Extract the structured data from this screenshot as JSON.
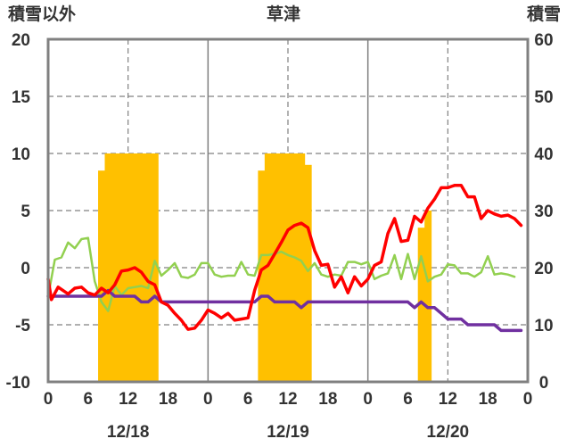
{
  "chart_data": {
    "type": "line",
    "title": "草津",
    "left_axis_label": "積雪以外",
    "right_axis_label": "積雪",
    "left_ylim": [
      -10,
      20
    ],
    "left_ticks": [
      "-10",
      "-5",
      "0",
      "5",
      "10",
      "15",
      "20"
    ],
    "right_ylim": [
      0,
      60
    ],
    "right_ticks": [
      "0",
      "10",
      "20",
      "30",
      "40",
      "50",
      "60"
    ],
    "x_range_hours": [
      0,
      72
    ],
    "x_tick_labels": [
      "0",
      "6",
      "12",
      "18",
      "0",
      "6",
      "12",
      "18",
      "0",
      "6",
      "12",
      "18",
      "0"
    ],
    "date_labels": [
      "12/18",
      "12/19",
      "12/20"
    ],
    "grid": "dashed vertical at 12h, solid at day boundaries, dashed horizontal",
    "colors": {
      "red": "#ff0000",
      "green": "#92d050",
      "purple": "#7030a0",
      "snow": "#ffc000",
      "frame": "#808080",
      "grid": "#808080"
    },
    "snow_depth_bars": [
      {
        "x0": 7.5,
        "x1": 8.5,
        "h": 37
      },
      {
        "x0": 8.5,
        "x1": 16.5,
        "h": 40
      },
      {
        "x0": 31.5,
        "x1": 32.5,
        "h": 37
      },
      {
        "x0": 32.5,
        "x1": 38.5,
        "h": 40
      },
      {
        "x0": 38.5,
        "x1": 39.5,
        "h": 38
      },
      {
        "x0": 55.5,
        "x1": 56.5,
        "h": 27
      },
      {
        "x0": 56.5,
        "x1": 57.5,
        "h": 30
      }
    ],
    "series": [
      {
        "color": "red",
        "points": [
          [
            0,
            -1
          ],
          [
            0.5,
            -2.8
          ],
          [
            1.5,
            -1.7
          ],
          [
            3,
            -2.3
          ],
          [
            4,
            -1.8
          ],
          [
            5,
            -1.7
          ],
          [
            6,
            -2.2
          ],
          [
            7,
            -2.4
          ],
          [
            8,
            -1.8
          ],
          [
            9,
            -2.2
          ],
          [
            10,
            -1.5
          ],
          [
            11,
            -0.3
          ],
          [
            12,
            -0.2
          ],
          [
            13,
            0
          ],
          [
            14,
            -0.4
          ],
          [
            15,
            -1.2
          ],
          [
            16,
            -1.5
          ],
          [
            17,
            -3
          ],
          [
            18,
            -3.3
          ],
          [
            19,
            -4
          ],
          [
            20,
            -4.6
          ],
          [
            21,
            -5.4
          ],
          [
            22,
            -5.3
          ],
          [
            23,
            -4.6
          ],
          [
            24,
            -3.7
          ],
          [
            25,
            -4
          ],
          [
            26,
            -4.4
          ],
          [
            27,
            -4
          ],
          [
            28,
            -4.6
          ],
          [
            29,
            -4.5
          ],
          [
            30,
            -4.4
          ],
          [
            31,
            -2
          ],
          [
            32,
            -0.2
          ],
          [
            33,
            0.2
          ],
          [
            34,
            1.2
          ],
          [
            35,
            2.2
          ],
          [
            36,
            3.3
          ],
          [
            37,
            3.7
          ],
          [
            38,
            3.9
          ],
          [
            39,
            3.5
          ],
          [
            40,
            1.5
          ],
          [
            41,
            0.2
          ],
          [
            42,
            0.3
          ],
          [
            43,
            -1.7
          ],
          [
            44,
            -0.8
          ],
          [
            45,
            -2.2
          ],
          [
            46,
            -0.8
          ],
          [
            47,
            -1.6
          ],
          [
            48,
            -1
          ],
          [
            49,
            0.2
          ],
          [
            50,
            0.5
          ],
          [
            51,
            3
          ],
          [
            52,
            4.3
          ],
          [
            53,
            2.3
          ],
          [
            54,
            2.4
          ],
          [
            55,
            4.5
          ],
          [
            56,
            4
          ],
          [
            57,
            5.2
          ],
          [
            58,
            6
          ],
          [
            59,
            7
          ],
          [
            60,
            7
          ],
          [
            61,
            7.2
          ],
          [
            62,
            7.2
          ],
          [
            63,
            6.2
          ],
          [
            64,
            6.2
          ],
          [
            65,
            4.3
          ],
          [
            66,
            5
          ],
          [
            67,
            4.7
          ],
          [
            68,
            4.5
          ],
          [
            69,
            4.6
          ],
          [
            70,
            4.3
          ],
          [
            71,
            3.7
          ]
        ]
      },
      {
        "color": "green",
        "points": [
          [
            0,
            -2.5
          ],
          [
            1,
            0.7
          ],
          [
            2,
            0.9
          ],
          [
            3,
            2.2
          ],
          [
            4,
            1.7
          ],
          [
            5,
            2.5
          ],
          [
            6,
            2.6
          ],
          [
            7,
            -1.2
          ],
          [
            8,
            -3
          ],
          [
            9,
            -3.8
          ],
          [
            10,
            -1.6
          ],
          [
            11,
            -2.4
          ],
          [
            12,
            -1.8
          ],
          [
            13,
            -1.7
          ],
          [
            14,
            -1.6
          ],
          [
            15,
            -1.8
          ],
          [
            16,
            0.6
          ],
          [
            17,
            -0.7
          ],
          [
            18,
            -0.2
          ],
          [
            19,
            0.4
          ],
          [
            20,
            -0.8
          ],
          [
            21,
            -0.9
          ],
          [
            22,
            -0.6
          ],
          [
            23,
            0.4
          ],
          [
            24,
            0.4
          ],
          [
            25,
            -0.6
          ],
          [
            26,
            -0.8
          ],
          [
            27,
            -0.7
          ],
          [
            28,
            -0.7
          ],
          [
            29,
            0.5
          ],
          [
            30,
            -0.6
          ],
          [
            31,
            -0.7
          ],
          [
            32,
            1.1
          ],
          [
            33,
            1.1
          ],
          [
            34,
            1.2
          ],
          [
            35,
            1.4
          ],
          [
            36,
            1.1
          ],
          [
            37,
            0.9
          ],
          [
            38,
            0.6
          ],
          [
            39,
            -0.3
          ],
          [
            40,
            0.4
          ],
          [
            41,
            -0.6
          ],
          [
            42,
            -0.8
          ],
          [
            43,
            -0.6
          ],
          [
            44,
            -0.7
          ],
          [
            45,
            0.5
          ],
          [
            46,
            0.5
          ],
          [
            47,
            0.3
          ],
          [
            48,
            0.5
          ],
          [
            49,
            -1
          ],
          [
            50,
            -0.7
          ],
          [
            51,
            -0.5
          ],
          [
            52,
            1.1
          ],
          [
            53,
            -1
          ],
          [
            54,
            1.2
          ],
          [
            55,
            -1
          ],
          [
            56,
            1
          ],
          [
            57,
            -1.2
          ],
          [
            58,
            -0.8
          ],
          [
            59,
            -0.6
          ],
          [
            60,
            0.3
          ],
          [
            61,
            0.2
          ],
          [
            62,
            -0.5
          ],
          [
            63,
            -0.5
          ],
          [
            64,
            -0.8
          ],
          [
            65,
            -0.4
          ],
          [
            66,
            1
          ],
          [
            67,
            -0.6
          ],
          [
            68,
            -0.5
          ],
          [
            69,
            -0.6
          ],
          [
            70,
            -0.8
          ]
        ]
      },
      {
        "color": "purple",
        "points": [
          [
            0,
            -2.5
          ],
          [
            6,
            -2.5
          ],
          [
            8,
            -2.5
          ],
          [
            9,
            -2
          ],
          [
            10,
            -2.5
          ],
          [
            12,
            -2.5
          ],
          [
            13,
            -2.5
          ],
          [
            14,
            -3
          ],
          [
            15,
            -3
          ],
          [
            16,
            -2.5
          ],
          [
            17,
            -3
          ],
          [
            30,
            -3
          ],
          [
            31,
            -3
          ],
          [
            32,
            -2.5
          ],
          [
            33,
            -2.5
          ],
          [
            34,
            -3
          ],
          [
            37,
            -3
          ],
          [
            38,
            -3.5
          ],
          [
            39,
            -3
          ],
          [
            46,
            -3
          ],
          [
            53,
            -3
          ],
          [
            54,
            -3
          ],
          [
            55,
            -3.5
          ],
          [
            56,
            -3
          ],
          [
            57,
            -3.5
          ],
          [
            58,
            -3.5
          ],
          [
            59,
            -4
          ],
          [
            60,
            -4.5
          ],
          [
            62,
            -4.5
          ],
          [
            63,
            -5
          ],
          [
            67,
            -5
          ],
          [
            68,
            -5.5
          ],
          [
            71,
            -5.5
          ]
        ]
      }
    ]
  }
}
